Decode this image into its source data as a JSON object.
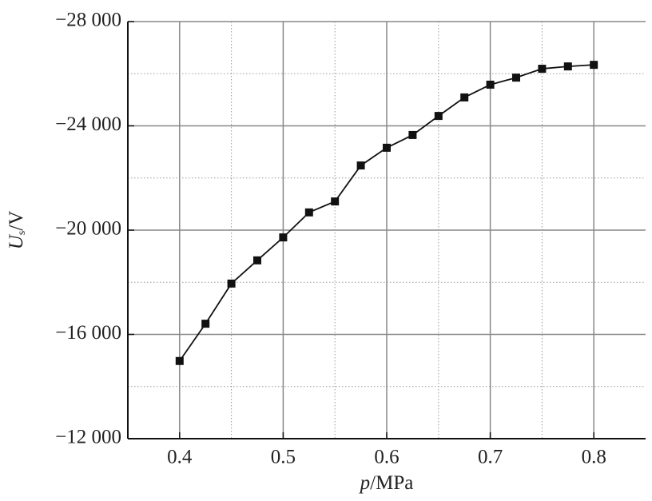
{
  "chart_data": {
    "type": "line",
    "x_label": {
      "var": "p",
      "unit": "/MPa"
    },
    "y_label": {
      "var": "U",
      "sub": "s",
      "unit": "/V"
    },
    "x": [
      0.4,
      0.425,
      0.45,
      0.475,
      0.5,
      0.525,
      0.55,
      0.575,
      0.6,
      0.625,
      0.65,
      0.675,
      0.7,
      0.725,
      0.75,
      0.775,
      0.8
    ],
    "series": [
      {
        "color": "#111111",
        "values": [
          -14980,
          -16410,
          -17950,
          -18840,
          -19720,
          -20680,
          -21100,
          -22480,
          -23160,
          -23650,
          -24380,
          -25090,
          -25580,
          -25850,
          -26190,
          -26280,
          -26340
        ]
      }
    ],
    "xlim": [
      0.35,
      0.85
    ],
    "ylim": [
      -12000,
      -28000
    ],
    "xticks": [
      0.4,
      0.5,
      0.6,
      0.7,
      0.8
    ],
    "yticks": [
      {
        "value": -28000,
        "label": "−28 000"
      },
      {
        "value": -24000,
        "label": "−24 000"
      },
      {
        "value": -20000,
        "label": "−20 000"
      },
      {
        "value": -16000,
        "label": "−16 000"
      },
      {
        "value": -12000,
        "label": "−12 000"
      }
    ],
    "x_minor": [
      0.45,
      0.55,
      0.65,
      0.75
    ],
    "y_minor": [
      -26000,
      -22000,
      -18000,
      -14000
    ],
    "grid": true,
    "marker": "square"
  }
}
